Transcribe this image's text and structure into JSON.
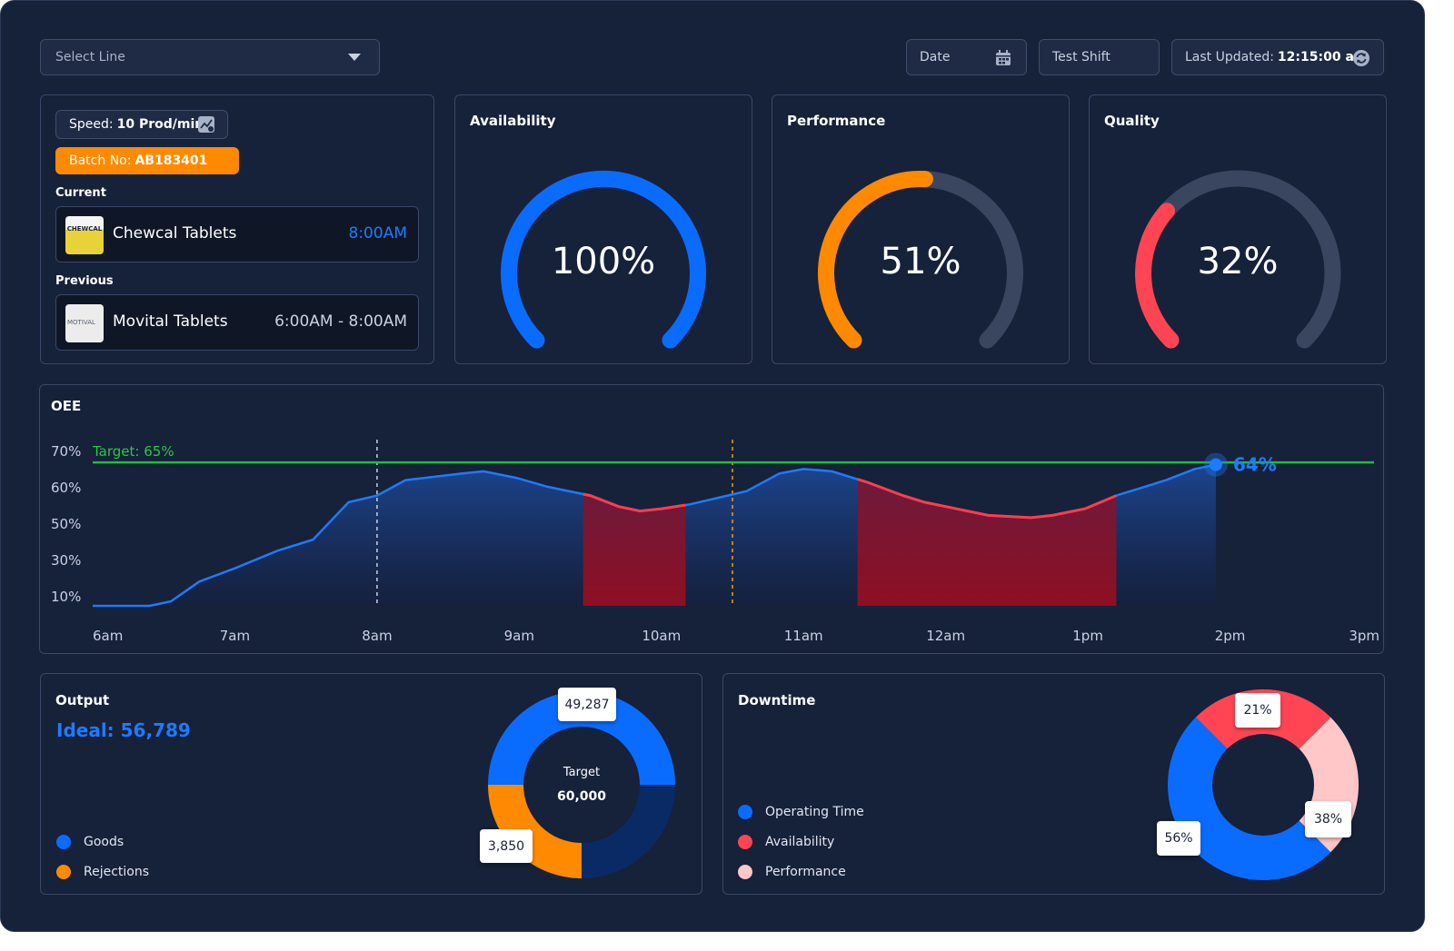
{
  "header": {
    "select_line_placeholder": "Select Line",
    "date_label": "Date",
    "shift_label": "Test Shift",
    "last_updated_label": "Last Updated:",
    "last_updated_value": "12:15:00 am"
  },
  "batch": {
    "speed_label": "Speed:",
    "speed_value": "10 Prod/min",
    "batch_label": "Batch No:",
    "batch_value": "AB183401",
    "current_label": "Current",
    "current_name": "Chewcal Tablets",
    "current_time": "8:00AM",
    "previous_label": "Previous",
    "previous_name": "Movital Tablets",
    "previous_time": "6:00AM - 8:00AM",
    "thumb_current_text": "CHEWCAL",
    "thumb_previous_text": "MOTIVAL"
  },
  "gauges": [
    {
      "title": "Availability",
      "value": 100,
      "value_label": "100%",
      "color": "#0a6cff"
    },
    {
      "title": "Performance",
      "value": 51,
      "value_label": "51%",
      "color": "#ff8a00"
    },
    {
      "title": "Quality",
      "value": 32,
      "value_label": "32%",
      "color": "#ff4553"
    }
  ],
  "chart_data": {
    "type": "area",
    "title": "OEE",
    "target": 65,
    "target_label": "Target: 65%",
    "current_label": "64%",
    "y_ticks": [
      "70%",
      "60%",
      "50%",
      "30%",
      "10%"
    ],
    "x_ticks": [
      "6am",
      "7am",
      "8am",
      "9am",
      "10am",
      "11am",
      "12am",
      "1pm",
      "2pm",
      "3pm"
    ],
    "series": [
      {
        "values": [
          [
            6.0,
            0
          ],
          [
            6.4,
            0
          ],
          [
            6.55,
            2
          ],
          [
            6.75,
            11
          ],
          [
            7.0,
            17
          ],
          [
            7.3,
            25
          ],
          [
            7.55,
            30
          ],
          [
            7.8,
            47
          ],
          [
            8.0,
            50
          ],
          [
            8.2,
            57
          ],
          [
            8.6,
            60
          ],
          [
            8.75,
            61
          ],
          [
            8.98,
            58
          ],
          [
            9.2,
            54
          ],
          [
            9.5,
            50
          ],
          [
            9.7,
            45
          ],
          [
            9.85,
            43
          ],
          [
            10.0,
            44
          ],
          [
            10.2,
            46
          ],
          [
            10.4,
            49
          ],
          [
            10.6,
            52
          ],
          [
            10.83,
            60
          ],
          [
            11.0,
            62
          ],
          [
            11.2,
            61
          ],
          [
            11.45,
            56
          ],
          [
            11.7,
            50
          ],
          [
            11.85,
            47
          ],
          [
            12.0,
            45
          ],
          [
            12.3,
            41
          ],
          [
            12.6,
            40
          ],
          [
            12.75,
            41
          ],
          [
            12.98,
            44
          ],
          [
            13.2,
            50
          ],
          [
            13.4,
            54
          ],
          [
            13.55,
            57
          ],
          [
            13.75,
            62
          ],
          [
            13.9,
            64
          ]
        ]
      }
    ],
    "low_regions": [
      [
        9.45,
        10.17
      ],
      [
        11.38,
        13.2
      ]
    ],
    "markers": [
      {
        "x": 8.0,
        "color": "#c9d1e3"
      },
      {
        "x": 10.5,
        "color": "#f59e0b"
      }
    ]
  },
  "output": {
    "title": "Output",
    "ideal_label": "Ideal: 56,789",
    "center_label": "Target",
    "center_value": "60,000",
    "callouts": [
      "49,287",
      "3,850"
    ],
    "legend": [
      {
        "label": "Goods",
        "color": "#0a6cff"
      },
      {
        "label": "Rejections",
        "color": "#ff8a00"
      }
    ],
    "segments": [
      {
        "name": "Goods",
        "value": 0.5,
        "color": "#0a6cff"
      },
      {
        "name": "Remaining",
        "value": 0.25,
        "color": "#0a2a66"
      },
      {
        "name": "Rejections",
        "value": 0.25,
        "color": "#ff8a00"
      }
    ]
  },
  "downtime": {
    "title": "Downtime",
    "legend": [
      {
        "label": "Operating Time",
        "color": "#0a6cff"
      },
      {
        "label": "Availability",
        "color": "#ff4553"
      },
      {
        "label": "Performance",
        "color": "#ffc7c7"
      }
    ],
    "segments": [
      {
        "name": "Availability",
        "value": 0.25,
        "color": "#ff4553",
        "label": "21%"
      },
      {
        "name": "Performance",
        "value": 0.25,
        "color": "#ffc7c7",
        "label": "38%"
      },
      {
        "name": "Operating Time",
        "value": 0.5,
        "color": "#0a6cff",
        "label": "56%"
      }
    ]
  }
}
